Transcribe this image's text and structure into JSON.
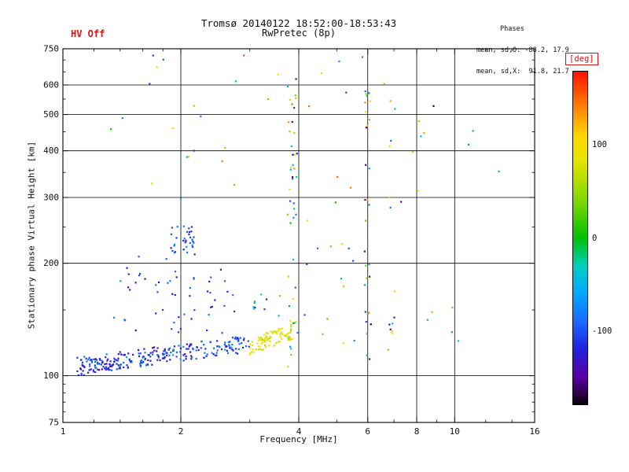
{
  "header": {
    "hv_status": "HV Off",
    "title": "Tromsø 20140122 18:52:00-18:53:43",
    "subtitle": "RwPretec (8p)",
    "phases": {
      "title": "Phases",
      "line_o": "mean, sd,O: -88.2, 17.9",
      "line_x": "mean, sd,X:  91.8, 21.7"
    }
  },
  "colors": {
    "accent_red": "#dd1111",
    "axis": "#000000",
    "background": "#ffffff"
  },
  "chart_data": {
    "type": "scatter",
    "title": "Tromsø 20140122 18:52:00-18:53:43",
    "subtitle": "RwPretec (8p)",
    "xlabel": "Frequency [MHz]",
    "ylabel": "Stationary phase Virtual Height [km]",
    "x_scale": "log",
    "y_scale": "log",
    "xlim": [
      1,
      16
    ],
    "ylim": [
      75,
      750
    ],
    "x_ticks": [
      1,
      2,
      4,
      6,
      8,
      10,
      16
    ],
    "x_minor_ticks": [
      1.2,
      1.4,
      1.6,
      1.8,
      3,
      5,
      7,
      9,
      12,
      14
    ],
    "y_ticks": [
      75,
      100,
      200,
      300,
      400,
      500,
      600,
      750
    ],
    "y_minor_ticks": [
      80,
      85,
      90,
      95,
      150,
      250,
      350,
      450,
      550,
      650,
      700
    ],
    "grid": true,
    "seed": 20140122,
    "colorbar": {
      "label": "[deg]",
      "min": -180,
      "max": 180,
      "ticks": [
        100,
        0,
        -100
      ],
      "stops": [
        [
          -180,
          "#0a000a"
        ],
        [
          -150,
          "#5a00a5"
        ],
        [
          -120,
          "#2222dd"
        ],
        [
          -90,
          "#1a6aff"
        ],
        [
          -60,
          "#00a8ff"
        ],
        [
          -30,
          "#00cfc0"
        ],
        [
          0,
          "#00c000"
        ],
        [
          40,
          "#7fd800"
        ],
        [
          85,
          "#e8e400"
        ],
        [
          110,
          "#ffd800"
        ],
        [
          145,
          "#ff7800"
        ],
        [
          180,
          "#ff1000"
        ]
      ]
    },
    "clusters": [
      {
        "name": "e-region-o-trace",
        "count": 240,
        "f": [
          1.08,
          3.0
        ],
        "h_trend": [
          106,
          122
        ],
        "h_jitter": 0.055,
        "phase": [
          -140,
          -72
        ]
      },
      {
        "name": "e-region-left-blob",
        "count": 40,
        "f": [
          1.08,
          1.45
        ],
        "h_trend": [
          104,
          110
        ],
        "h_jitter": 0.045,
        "phase": [
          -150,
          -90
        ]
      },
      {
        "name": "x-trace-yellow",
        "count": 85,
        "f": [
          2.95,
          3.85
        ],
        "h_trend": [
          119,
          131
        ],
        "h_jitter": 0.05,
        "phase": [
          60,
          112
        ]
      },
      {
        "name": "mid-scatter-blue",
        "count": 55,
        "f": [
          1.35,
          2.75
        ],
        "h": [
          130,
          215
        ],
        "phase": [
          -145,
          -65
        ]
      },
      {
        "name": "cluster-235km",
        "count": 34,
        "f": [
          1.88,
          2.16
        ],
        "h": [
          210,
          252
        ],
        "phase": [
          -128,
          -82
        ]
      },
      {
        "name": "streak-3p8mhz",
        "count": 46,
        "f": [
          3.74,
          3.97
        ],
        "h": [
          103,
          655
        ],
        "phase": [
          -178,
          178
        ]
      },
      {
        "name": "streak-6mhz",
        "count": 30,
        "f": [
          5.86,
          6.12
        ],
        "h": [
          102,
          580
        ],
        "phase": [
          -178,
          178
        ]
      },
      {
        "name": "streak-6p9mhz",
        "count": 14,
        "f": [
          6.75,
          7.05
        ],
        "h": [
          112,
          560
        ],
        "phase": [
          -170,
          170
        ]
      },
      {
        "name": "sparse-high",
        "count": 40,
        "f": [
          1.05,
          13.5
        ],
        "h": [
          290,
          720
        ],
        "phase": [
          -175,
          175
        ]
      },
      {
        "name": "sparse-mid-right",
        "count": 14,
        "f": [
          4.1,
          5.6
        ],
        "h": [
          105,
          270
        ],
        "phase": [
          -140,
          140
        ]
      },
      {
        "name": "sparse-right-low",
        "count": 5,
        "f": [
          7.5,
          10.5
        ],
        "h": [
          100,
          160
        ],
        "phase": [
          -120,
          60
        ]
      },
      {
        "name": "above-x-trace",
        "count": 10,
        "f": [
          3.05,
          3.7
        ],
        "h": [
          140,
          178
        ],
        "phase": [
          -125,
          60
        ]
      }
    ]
  }
}
